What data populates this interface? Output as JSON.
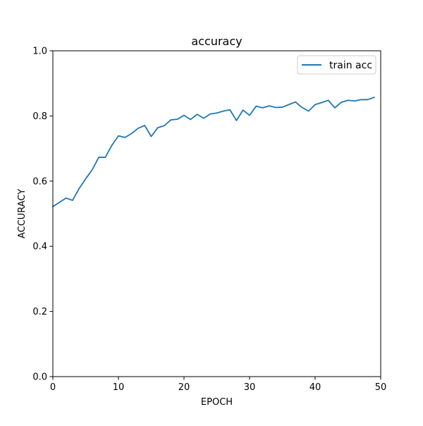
{
  "chart_data": {
    "type": "line",
    "title": "accuracy",
    "xlabel": "EPOCH",
    "ylabel": "ACCURACY",
    "xlim": [
      0,
      50
    ],
    "ylim": [
      0.0,
      1.0
    ],
    "x_ticks": [
      0,
      10,
      20,
      30,
      40,
      50
    ],
    "y_ticks": [
      0.0,
      0.2,
      0.4,
      0.6,
      0.8,
      1.0
    ],
    "x_tick_labels": [
      "0",
      "10",
      "20",
      "30",
      "40",
      "50"
    ],
    "y_tick_labels": [
      "0.0",
      "0.2",
      "0.4",
      "0.6",
      "0.8",
      "1.0"
    ],
    "grid": false,
    "legend_position": "top-right",
    "x": [
      0,
      1,
      2,
      3,
      4,
      5,
      6,
      7,
      8,
      9,
      10,
      11,
      12,
      13,
      14,
      15,
      16,
      17,
      18,
      19,
      20,
      21,
      22,
      23,
      24,
      25,
      26,
      27,
      28,
      29,
      30,
      31,
      32,
      33,
      34,
      35,
      36,
      37,
      38,
      39,
      40,
      41,
      42,
      43,
      44,
      45,
      46,
      47,
      48,
      49
    ],
    "series": [
      {
        "name": "train acc",
        "color": "#1f77b4",
        "values": [
          0.522,
          0.535,
          0.548,
          0.541,
          0.577,
          0.607,
          0.635,
          0.673,
          0.673,
          0.71,
          0.739,
          0.734,
          0.746,
          0.762,
          0.771,
          0.737,
          0.764,
          0.77,
          0.788,
          0.79,
          0.802,
          0.789,
          0.805,
          0.793,
          0.806,
          0.809,
          0.815,
          0.819,
          0.786,
          0.818,
          0.802,
          0.83,
          0.825,
          0.831,
          0.826,
          0.827,
          0.835,
          0.843,
          0.826,
          0.815,
          0.835,
          0.841,
          0.848,
          0.825,
          0.842,
          0.848,
          0.846,
          0.85,
          0.85,
          0.857
        ]
      }
    ]
  }
}
